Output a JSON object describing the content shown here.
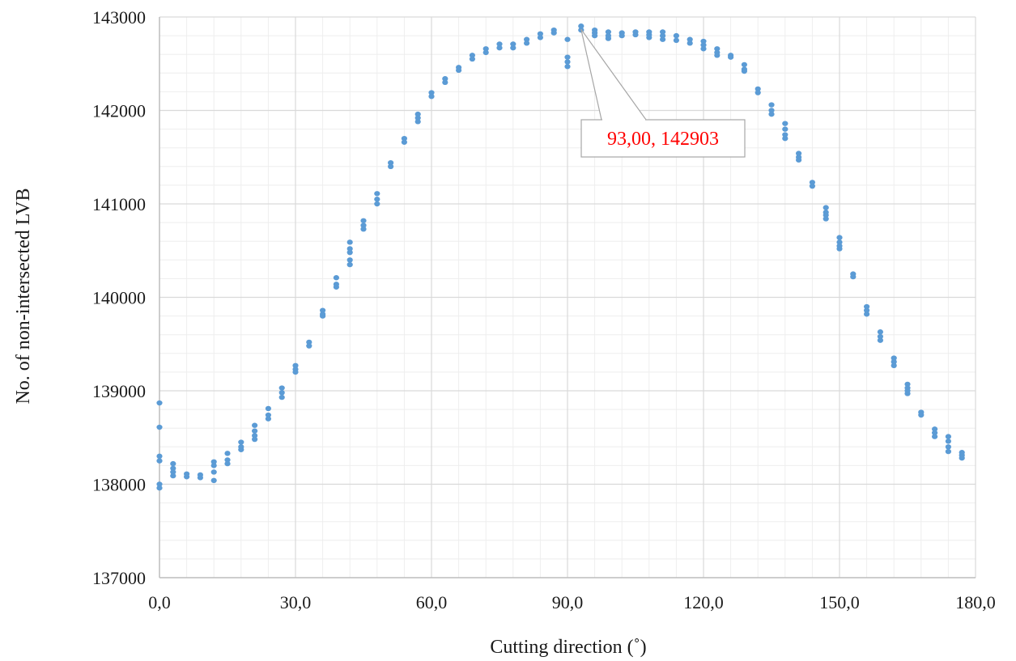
{
  "chart_data": {
    "type": "scatter",
    "xlabel": "Cutting direction (˚)",
    "ylabel": "No. of non-intersected LVB",
    "xlim": [
      0,
      180
    ],
    "ylim": [
      137000,
      143000
    ],
    "x_ticks": [
      0,
      30,
      60,
      90,
      120,
      150,
      180
    ],
    "x_tick_labels": [
      "0,0",
      "30,0",
      "60,0",
      "90,0",
      "120,0",
      "150,0",
      "180,0"
    ],
    "y_ticks": [
      137000,
      138000,
      139000,
      140000,
      141000,
      142000,
      143000
    ],
    "y_tick_labels": [
      "137000",
      "138000",
      "139000",
      "140000",
      "141000",
      "142000",
      "143000"
    ],
    "grid": {
      "major": true,
      "minor": true,
      "x_minor_step": 6,
      "y_minor_step": 200
    },
    "legend": "none",
    "colors": {
      "marker": "#5b9bd5",
      "grid_major": "#d9d9d9",
      "grid_minor": "#eeeeee",
      "axis": "#bfbfbf",
      "callout_text": "#ff0000",
      "callout_border": "#a6a6a6"
    },
    "annotations": [
      {
        "text": "93,00, 142903",
        "x": 93,
        "y": 142903
      }
    ],
    "series": [
      {
        "points": [
          [
            0,
            138870
          ],
          [
            0,
            138610
          ],
          [
            0,
            138300
          ],
          [
            0,
            138250
          ],
          [
            0,
            138000
          ],
          [
            0,
            137960
          ],
          [
            3,
            138220
          ],
          [
            3,
            138170
          ],
          [
            3,
            138130
          ],
          [
            3,
            138090
          ],
          [
            6,
            138110
          ],
          [
            6,
            138080
          ],
          [
            9,
            138100
          ],
          [
            9,
            138070
          ],
          [
            12,
            138240
          ],
          [
            12,
            138200
          ],
          [
            12,
            138130
          ],
          [
            12,
            138040
          ],
          [
            15,
            138330
          ],
          [
            15,
            138260
          ],
          [
            15,
            138220
          ],
          [
            18,
            138450
          ],
          [
            18,
            138400
          ],
          [
            18,
            138370
          ],
          [
            21,
            138630
          ],
          [
            21,
            138570
          ],
          [
            21,
            138520
          ],
          [
            21,
            138480
          ],
          [
            24,
            138810
          ],
          [
            24,
            138740
          ],
          [
            24,
            138700
          ],
          [
            27,
            139030
          ],
          [
            27,
            138980
          ],
          [
            27,
            138930
          ],
          [
            30,
            139270
          ],
          [
            30,
            139230
          ],
          [
            30,
            139200
          ],
          [
            33,
            139520
          ],
          [
            33,
            139480
          ],
          [
            36,
            139860
          ],
          [
            36,
            139820
          ],
          [
            36,
            139800
          ],
          [
            39,
            140210
          ],
          [
            39,
            140140
          ],
          [
            39,
            140110
          ],
          [
            42,
            140590
          ],
          [
            42,
            140520
          ],
          [
            42,
            140480
          ],
          [
            42,
            140400
          ],
          [
            42,
            140350
          ],
          [
            45,
            140820
          ],
          [
            45,
            140770
          ],
          [
            45,
            140730
          ],
          [
            48,
            141110
          ],
          [
            48,
            141050
          ],
          [
            48,
            141000
          ],
          [
            51,
            141440
          ],
          [
            51,
            141400
          ],
          [
            54,
            141700
          ],
          [
            54,
            141660
          ],
          [
            57,
            141960
          ],
          [
            57,
            141920
          ],
          [
            57,
            141880
          ],
          [
            60,
            142190
          ],
          [
            60,
            142150
          ],
          [
            63,
            142340
          ],
          [
            63,
            142300
          ],
          [
            66,
            142460
          ],
          [
            66,
            142430
          ],
          [
            69,
            142590
          ],
          [
            69,
            142550
          ],
          [
            72,
            142660
          ],
          [
            72,
            142620
          ],
          [
            75,
            142710
          ],
          [
            75,
            142670
          ],
          [
            78,
            142710
          ],
          [
            78,
            142670
          ],
          [
            81,
            142760
          ],
          [
            81,
            142720
          ],
          [
            84,
            142820
          ],
          [
            84,
            142780
          ],
          [
            87,
            142860
          ],
          [
            87,
            142830
          ],
          [
            90,
            142760
          ],
          [
            90,
            142570
          ],
          [
            90,
            142520
          ],
          [
            90,
            142470
          ],
          [
            93,
            142903
          ],
          [
            93,
            142860
          ],
          [
            96,
            142860
          ],
          [
            96,
            142830
          ],
          [
            96,
            142800
          ],
          [
            99,
            142840
          ],
          [
            99,
            142800
          ],
          [
            99,
            142770
          ],
          [
            102,
            142830
          ],
          [
            102,
            142800
          ],
          [
            105,
            142840
          ],
          [
            105,
            142810
          ],
          [
            108,
            142840
          ],
          [
            108,
            142810
          ],
          [
            108,
            142780
          ],
          [
            111,
            142840
          ],
          [
            111,
            142800
          ],
          [
            111,
            142760
          ],
          [
            114,
            142800
          ],
          [
            114,
            142750
          ],
          [
            117,
            142760
          ],
          [
            117,
            142720
          ],
          [
            120,
            142740
          ],
          [
            120,
            142700
          ],
          [
            120,
            142660
          ],
          [
            123,
            142660
          ],
          [
            123,
            142620
          ],
          [
            123,
            142590
          ],
          [
            126,
            142590
          ],
          [
            126,
            142570
          ],
          [
            129,
            142490
          ],
          [
            129,
            142440
          ],
          [
            129,
            142420
          ],
          [
            132,
            142230
          ],
          [
            132,
            142190
          ],
          [
            135,
            142060
          ],
          [
            135,
            142000
          ],
          [
            135,
            141960
          ],
          [
            138,
            141860
          ],
          [
            138,
            141800
          ],
          [
            138,
            141740
          ],
          [
            138,
            141700
          ],
          [
            141,
            141540
          ],
          [
            141,
            141500
          ],
          [
            141,
            141470
          ],
          [
            144,
            141230
          ],
          [
            144,
            141190
          ],
          [
            147,
            140960
          ],
          [
            147,
            140910
          ],
          [
            147,
            140880
          ],
          [
            147,
            140840
          ],
          [
            150,
            140640
          ],
          [
            150,
            140590
          ],
          [
            150,
            140550
          ],
          [
            150,
            140520
          ],
          [
            153,
            140250
          ],
          [
            153,
            140220
          ],
          [
            156,
            139900
          ],
          [
            156,
            139860
          ],
          [
            156,
            139820
          ],
          [
            159,
            139630
          ],
          [
            159,
            139580
          ],
          [
            159,
            139540
          ],
          [
            162,
            139350
          ],
          [
            162,
            139310
          ],
          [
            162,
            139270
          ],
          [
            165,
            139070
          ],
          [
            165,
            139030
          ],
          [
            165,
            139000
          ],
          [
            165,
            138970
          ],
          [
            168,
            138770
          ],
          [
            168,
            138740
          ],
          [
            171,
            138590
          ],
          [
            171,
            138550
          ],
          [
            171,
            138510
          ],
          [
            174,
            138510
          ],
          [
            174,
            138460
          ],
          [
            174,
            138400
          ],
          [
            174,
            138350
          ],
          [
            177,
            138340
          ],
          [
            177,
            138310
          ],
          [
            177,
            138280
          ]
        ]
      }
    ]
  }
}
